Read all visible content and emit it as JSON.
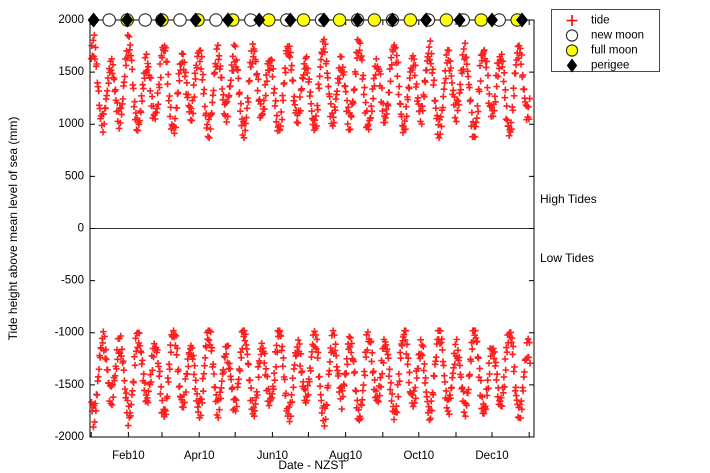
{
  "chart_data": {
    "type": "scatter",
    "title": "",
    "xlabel": "Date - NZST",
    "ylabel": "Tide height above mean level of sea (mm)",
    "ylim": [
      -2000,
      2000
    ],
    "ytick_step": 500,
    "xlim_days": [
      -1,
      369
    ],
    "grid": false,
    "legend_position": "outside-top-right",
    "ytick_labels": [
      "2000",
      "1500",
      "1000",
      "500",
      "0",
      "-500",
      "-1000",
      "-1500",
      "-2000"
    ],
    "ytick_values": [
      2000,
      1500,
      1000,
      500,
      0,
      -500,
      -1000,
      -1500,
      -2000
    ],
    "xticks": [
      {
        "day": 31,
        "label": "Feb10"
      },
      {
        "day": 90,
        "label": "Apr10"
      },
      {
        "day": 151,
        "label": "Jun10"
      },
      {
        "day": 212,
        "label": "Aug10"
      },
      {
        "day": 273,
        "label": "Oct10"
      },
      {
        "day": 334,
        "label": "Dec10"
      }
    ],
    "xticks_minor_days": [
      0,
      59,
      120,
      181,
      243,
      304,
      365
    ],
    "legend": {
      "entries": [
        {
          "marker": "plus",
          "label": "tide"
        },
        {
          "marker": "circle-white",
          "label": "new moon"
        },
        {
          "marker": "circle-yellow",
          "label": "full moon"
        },
        {
          "marker": "diamond-black",
          "label": "perigee"
        }
      ]
    },
    "annotations": [
      {
        "id": "high",
        "text": "High Tides"
      },
      {
        "id": "low",
        "text": "Low Tides"
      }
    ],
    "colors": {
      "tide": "#ff0000",
      "new_moon_fill": "#ffffff",
      "full_moon_fill": "#ffff00",
      "perigee_fill": "#000000",
      "marker_edge": "#2a2a2a"
    },
    "events": {
      "marker_value_mm": 2000,
      "new_moon_days": [
        15,
        45,
        74,
        104,
        133,
        163,
        192,
        222,
        251,
        281,
        310,
        340
      ],
      "full_moon_days": [
        30,
        59,
        89,
        118,
        148,
        177,
        207,
        236,
        266,
        296,
        325,
        355
      ],
      "perigee_days": [
        2,
        30,
        58,
        87,
        114,
        140,
        166,
        194,
        222,
        251,
        279,
        307,
        334,
        359
      ]
    },
    "tide_model": {
      "description": "semidiurnal high/low tide extrema, two per day, spring-neap and perigean modulation",
      "days": 366,
      "step_days": 0.51754,
      "high_mean_mm": 1345,
      "low_mean_mm": -1395,
      "spring_amp_mm": 320,
      "spring_period_days": 14.765,
      "spring_phase_day": 16.5,
      "perigee_amp_mm": 95,
      "perigee_period_days": 27.555,
      "perigee_phase_day": 2,
      "inequality_amp_mm": 75,
      "inequality_period_days": 13.661,
      "inequality_phase_day": 3,
      "noise_mm": 45,
      "high_range_mm": [
        870,
        1930
      ],
      "low_range_mm": [
        -1960,
        -980
      ],
      "seed": 7
    }
  }
}
